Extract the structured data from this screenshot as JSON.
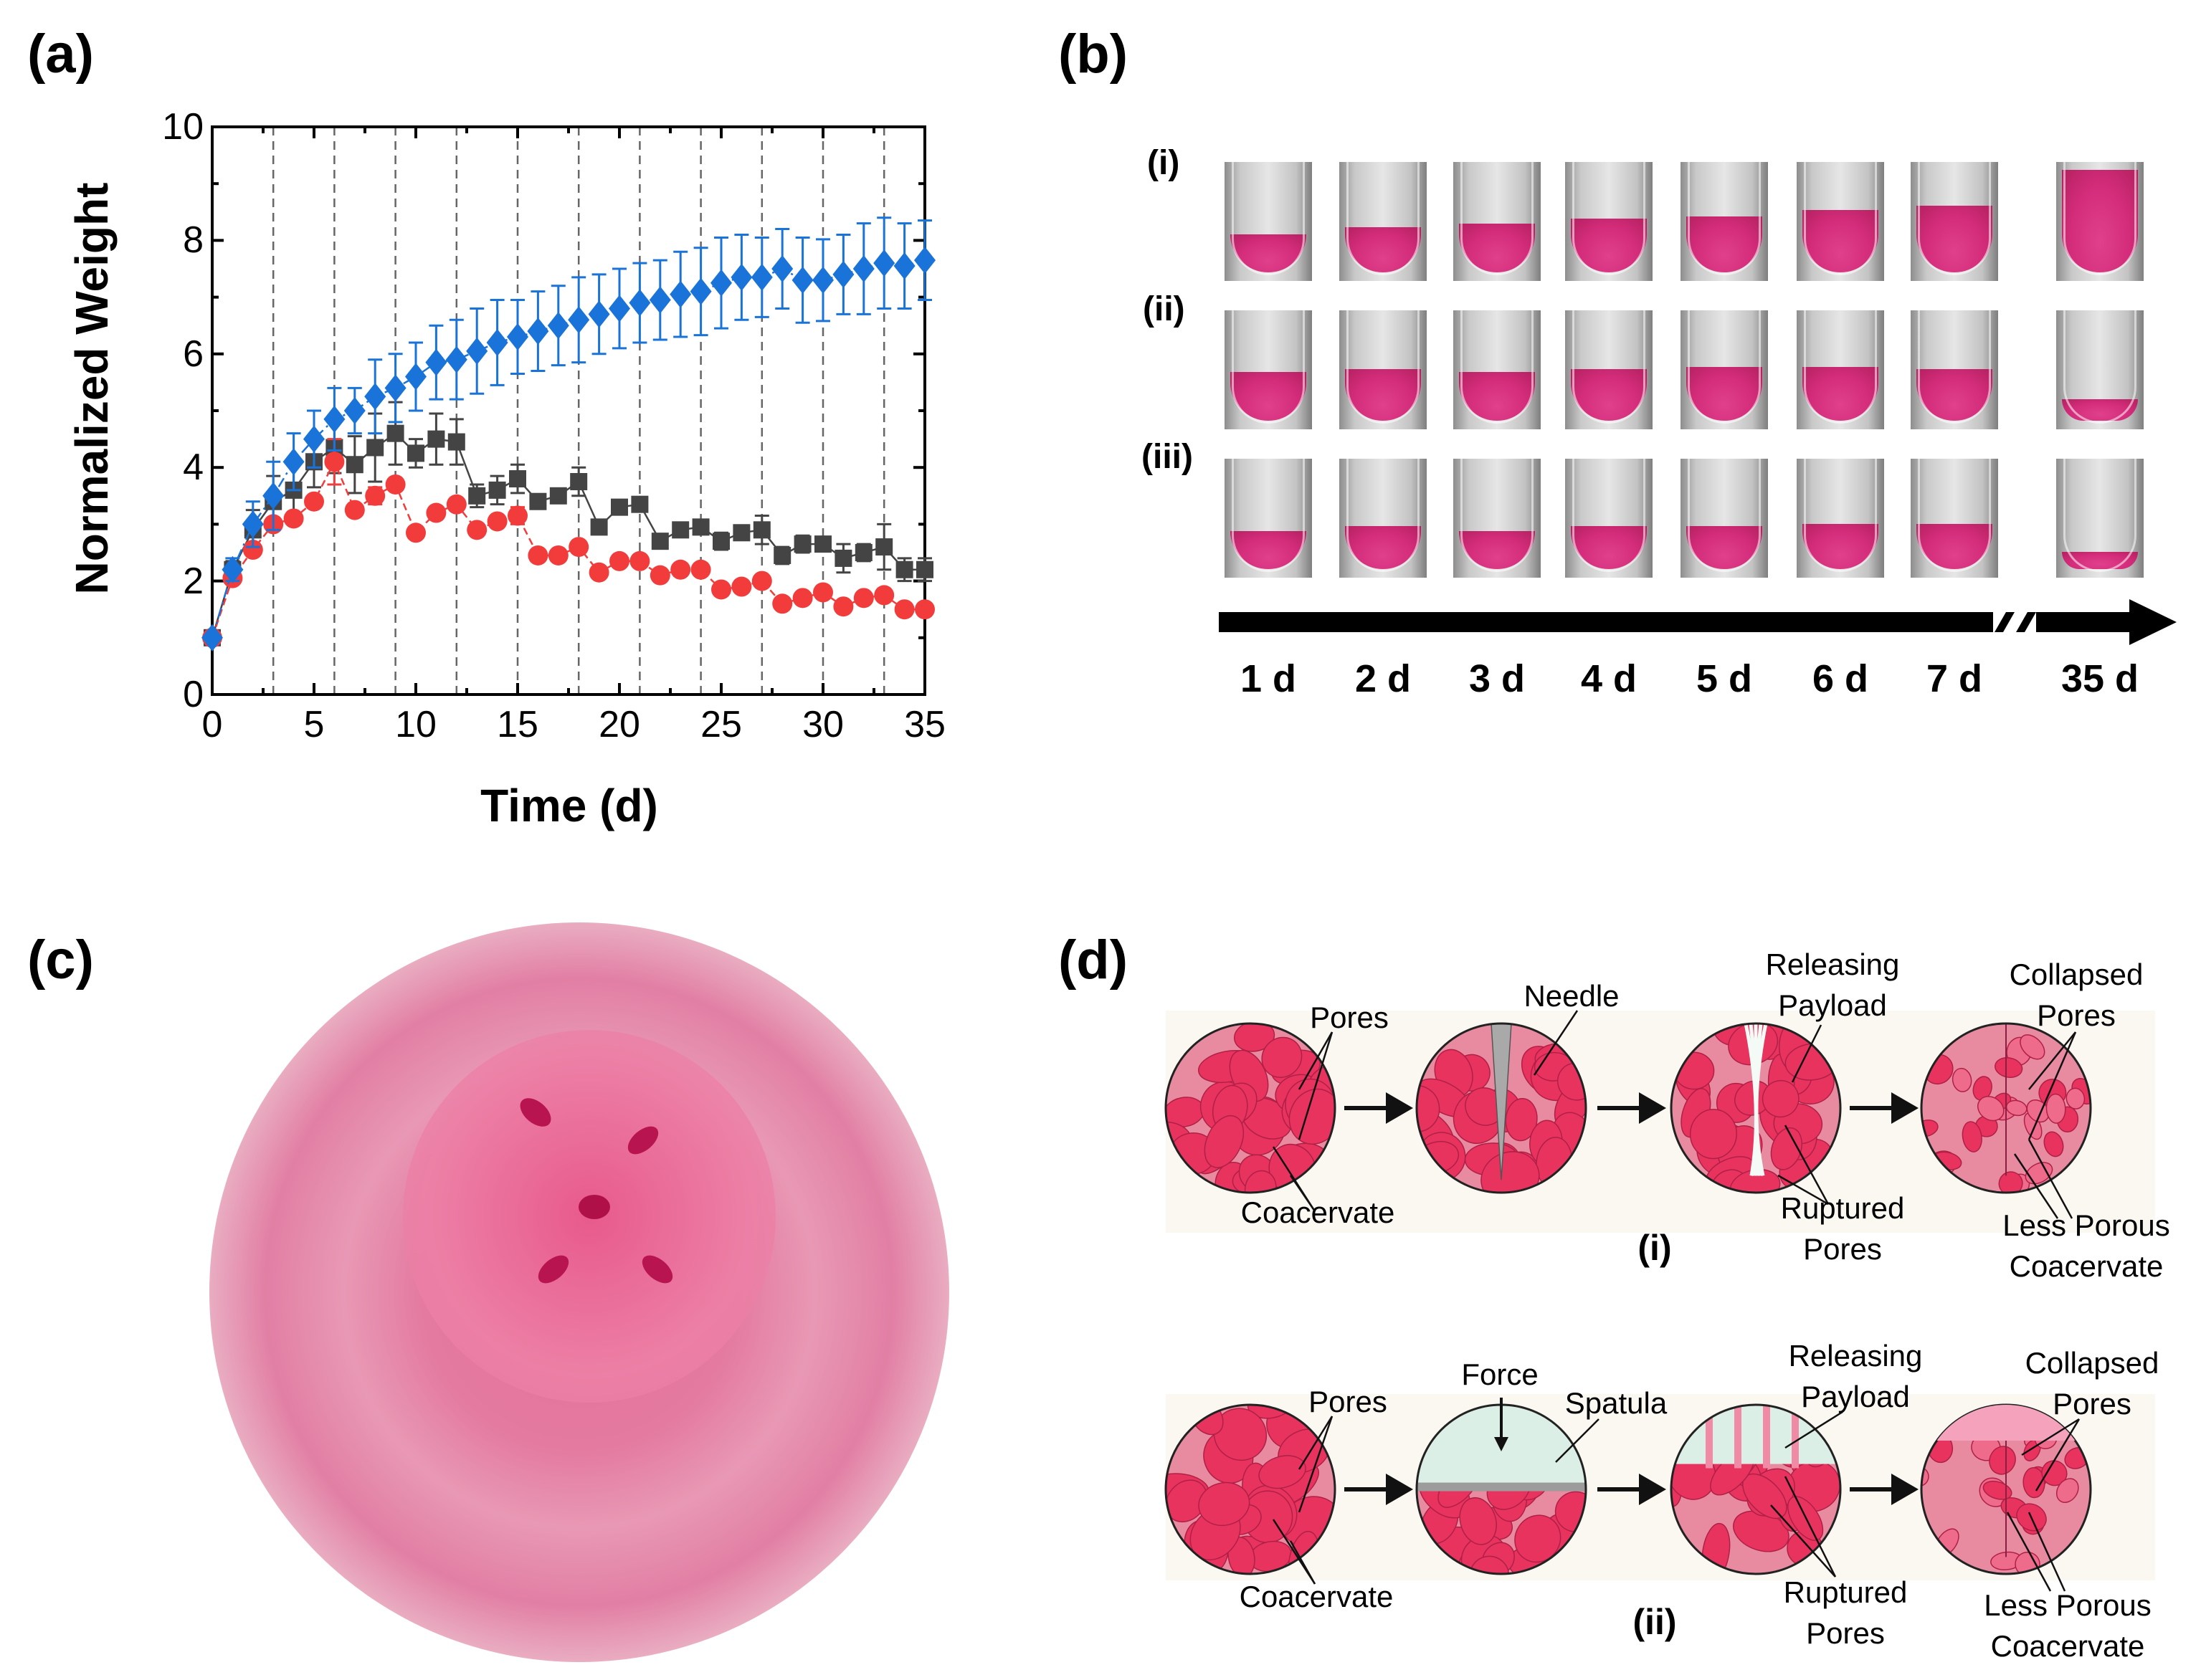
{
  "panels": {
    "a": "(a)",
    "b": "(b)",
    "c": "(c)",
    "d": "(d)"
  },
  "chart_data": {
    "type": "line",
    "title": "",
    "xlabel": "Time (d)",
    "ylabel": "Normalized Weight",
    "xlim": [
      0,
      35
    ],
    "ylim": [
      0,
      10
    ],
    "xticks": [
      0,
      5,
      10,
      15,
      20,
      25,
      30,
      35
    ],
    "yticks": [
      0,
      2,
      4,
      6,
      8,
      10
    ],
    "vlines_dashed": [
      3,
      6,
      9,
      12,
      15,
      18,
      21,
      24,
      27,
      30,
      33
    ],
    "grid": false,
    "x": [
      0,
      1,
      2,
      3,
      4,
      5,
      6,
      7,
      8,
      9,
      10,
      11,
      12,
      13,
      14,
      15,
      16,
      17,
      18,
      19,
      20,
      21,
      22,
      23,
      24,
      25,
      26,
      27,
      28,
      29,
      30,
      31,
      32,
      33,
      34,
      35
    ],
    "series": [
      {
        "name": "blue-diamond",
        "color": "#1a73d9",
        "marker": "diamond",
        "values": [
          1.0,
          2.2,
          3.0,
          3.5,
          4.1,
          4.5,
          4.85,
          5.0,
          5.25,
          5.4,
          5.6,
          5.85,
          5.9,
          6.05,
          6.2,
          6.3,
          6.4,
          6.5,
          6.6,
          6.7,
          6.8,
          6.9,
          6.95,
          7.05,
          7.1,
          7.25,
          7.35,
          7.35,
          7.5,
          7.3,
          7.3,
          7.4,
          7.5,
          7.6,
          7.55,
          7.65
        ],
        "errors": [
          0,
          0.2,
          0.4,
          0.6,
          0.5,
          0.5,
          0.55,
          0.4,
          0.65,
          0.6,
          0.6,
          0.65,
          0.7,
          0.75,
          0.75,
          0.65,
          0.7,
          0.7,
          0.75,
          0.7,
          0.7,
          0.7,
          0.7,
          0.75,
          0.77,
          0.8,
          0.75,
          0.7,
          0.7,
          0.75,
          0.72,
          0.7,
          0.8,
          0.8,
          0.75,
          0.7
        ]
      },
      {
        "name": "gray-square",
        "color": "#444444",
        "marker": "square",
        "values": [
          1.0,
          2.2,
          2.9,
          3.4,
          3.6,
          4.1,
          4.35,
          4.05,
          4.35,
          4.6,
          4.25,
          4.5,
          4.45,
          3.5,
          3.6,
          3.8,
          3.4,
          3.5,
          3.75,
          2.95,
          3.3,
          3.35,
          2.7,
          2.9,
          2.95,
          2.7,
          2.85,
          2.9,
          2.45,
          2.65,
          2.65,
          2.4,
          2.5,
          2.6,
          2.2,
          2.2
        ],
        "errors": [
          0,
          0.15,
          0.35,
          0.45,
          0.45,
          0.45,
          0.45,
          0.5,
          0.6,
          0.55,
          0.25,
          0.45,
          0.4,
          0.2,
          0.25,
          0.25,
          0.1,
          0.1,
          0.25,
          0.1,
          0.1,
          0.1,
          0.1,
          0.1,
          0.1,
          0.15,
          0.1,
          0.25,
          0.15,
          0.15,
          0.1,
          0.25,
          0.15,
          0.4,
          0.2,
          0.2
        ]
      },
      {
        "name": "red-circle",
        "color": "#f23c3c",
        "marker": "circle",
        "values": [
          1.0,
          2.05,
          2.55,
          3.0,
          3.1,
          3.4,
          4.1,
          3.25,
          3.5,
          3.7,
          2.85,
          3.2,
          3.35,
          2.9,
          3.05,
          3.15,
          2.45,
          2.45,
          2.6,
          2.15,
          2.35,
          2.35,
          2.1,
          2.2,
          2.2,
          1.85,
          1.9,
          2.0,
          1.6,
          1.7,
          1.8,
          1.55,
          1.7,
          1.75,
          1.5,
          1.5
        ],
        "errors": [
          0,
          0.1,
          0.1,
          0.1,
          0.1,
          0.1,
          0.4,
          0.1,
          0.15,
          0.1,
          0.1,
          0.1,
          0.1,
          0.1,
          0.1,
          0.15,
          0.1,
          0.1,
          0.1,
          0.1,
          0.1,
          0.1,
          0.1,
          0.1,
          0.1,
          0.1,
          0.1,
          0.1,
          0.1,
          0.1,
          0.1,
          0.1,
          0.1,
          0.1,
          0.1,
          0.1
        ]
      }
    ]
  },
  "panel_b": {
    "rows": [
      "(i)",
      "(ii)",
      "(iii)"
    ],
    "days": [
      "1 d",
      "2 d",
      "3 d",
      "4 d",
      "5 d",
      "6 d",
      "7 d",
      "35 d"
    ]
  },
  "panel_d": {
    "row1": {
      "pores": "Pores",
      "coacervate": "Coacervate",
      "needle": "Needle",
      "releasing": "Releasing",
      "payload": "Payload",
      "ruptured": "Ruptured",
      "ruptured_pores": "Pores",
      "collapsed": "Collapsed",
      "collapsed_pores": "Pores",
      "less_porous": "Less Porous",
      "less_coacervate": "Coacervate",
      "label": "(i)"
    },
    "row2": {
      "pores": "Pores",
      "coacervate": "Coacervate",
      "force": "Force",
      "spatula": "Spatula",
      "releasing": "Releasing",
      "payload": "Payload",
      "ruptured": "Ruptured",
      "ruptured_pores": "Pores",
      "collapsed": "Collapsed",
      "collapsed_pores": "Pores",
      "less_porous": "Less Porous",
      "less_coacervate": "Coacervate",
      "label": "(ii)"
    }
  },
  "colors": {
    "pink_matrix": "#e88ba0",
    "pink_pore": "#e8335f",
    "tube_pink": "#d6307f"
  }
}
